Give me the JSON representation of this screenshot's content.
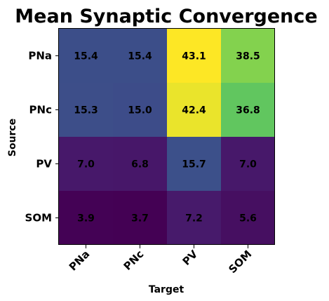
{
  "chart_data": {
    "type": "heatmap",
    "title": "Mean Synaptic Convergence",
    "xlabel": "Target",
    "ylabel": "Source",
    "x_categories": [
      "PNa",
      "PNc",
      "PV",
      "SOM"
    ],
    "y_categories": [
      "PNa",
      "PNc",
      "PV",
      "SOM"
    ],
    "values": [
      [
        15.4,
        15.4,
        43.1,
        38.5
      ],
      [
        15.3,
        15.0,
        42.4,
        36.8
      ],
      [
        7.0,
        6.8,
        15.7,
        7.0
      ],
      [
        3.9,
        3.7,
        7.2,
        5.6
      ]
    ],
    "value_labels": [
      [
        "15.4",
        "15.4",
        "43.1",
        "38.5"
      ],
      [
        "15.3",
        "15.0",
        "42.4",
        "36.8"
      ],
      [
        "7.0",
        "6.8",
        "15.7",
        "7.0"
      ],
      [
        "3.9",
        "3.7",
        "7.2",
        "5.6"
      ]
    ],
    "colormap": "viridis",
    "color_range": [
      3.7,
      43.1
    ]
  }
}
